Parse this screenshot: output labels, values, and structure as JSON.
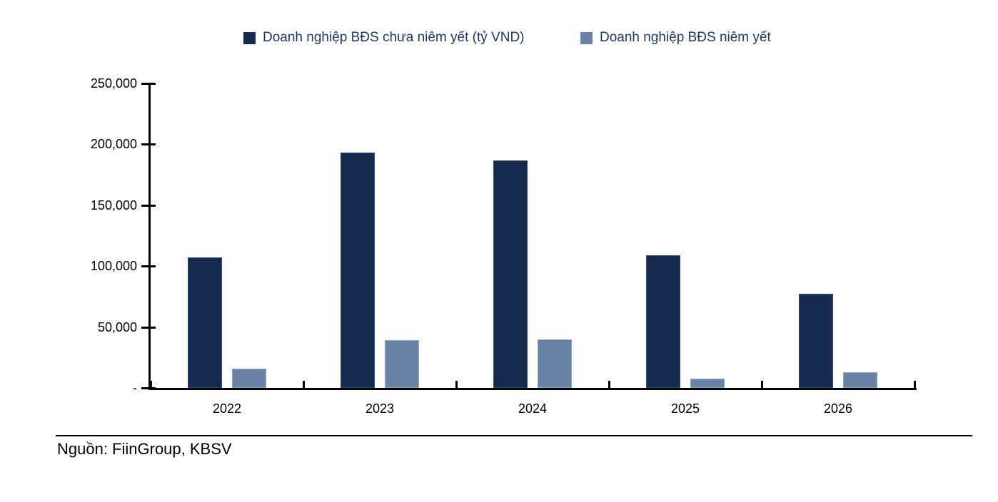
{
  "legend": {
    "items": [
      {
        "label": "Doanh nghiệp BĐS chưa niêm yết (tỷ VND)",
        "color": "#16294e"
      },
      {
        "label": "Doanh nghiệp BĐS niêm yết",
        "color": "#6a82a5"
      }
    ]
  },
  "chart_data": {
    "type": "bar",
    "categories": [
      "2022",
      "2023",
      "2024",
      "2025",
      "2026"
    ],
    "series": [
      {
        "name": "Doanh nghiệp BĐS chưa niêm yết (tỷ VND)",
        "color": "#16294e",
        "values": [
          107000,
          193000,
          187000,
          109000,
          77000
        ]
      },
      {
        "name": "Doanh nghiệp BĐS niêm yết",
        "color": "#6a82a5",
        "values": [
          16000,
          39000,
          40000,
          7500,
          13000
        ]
      }
    ],
    "ylim": [
      0,
      250000
    ],
    "yticks": [
      0,
      50000,
      100000,
      150000,
      200000,
      250000
    ],
    "ytick_labels": [
      "-",
      "50,000",
      "100,000",
      "150,000",
      "200,000",
      "250,000"
    ],
    "grid": false,
    "legend_position": "top"
  },
  "source": {
    "text": "Nguồn: FiinGroup, KBSV"
  }
}
